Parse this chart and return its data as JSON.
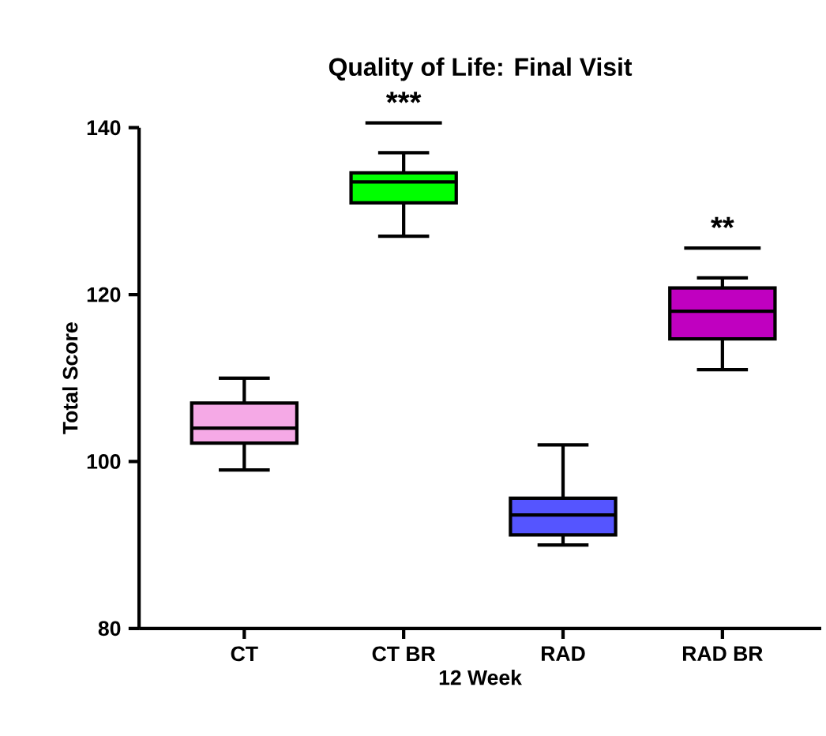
{
  "chart_data": {
    "type": "box",
    "title": "Quality of Life: Final Visit",
    "xlabel": "12 Week",
    "ylabel": "Total Score",
    "categories": [
      "CT",
      "CT BR",
      "RAD",
      "RAD BR"
    ],
    "colors": [
      "#f5a9e6",
      "#00ff00",
      "#5555ff",
      "#c000c0"
    ],
    "boxes": [
      {
        "low": 99,
        "q1": 102.2,
        "median": 104,
        "q3": 107,
        "high": 110
      },
      {
        "low": 127,
        "q1": 131,
        "median": 133.5,
        "q3": 134.6,
        "high": 137
      },
      {
        "low": 90,
        "q1": 91.2,
        "median": 93.6,
        "q3": 95.6,
        "high": 102
      },
      {
        "low": 111,
        "q1": 114.7,
        "median": 118,
        "q3": 120.8,
        "high": 122
      }
    ],
    "annotations": [
      "***",
      "**"
    ],
    "ylim": [
      80,
      140
    ],
    "yticks": [
      80,
      100,
      120,
      140
    ],
    "grid": false
  }
}
